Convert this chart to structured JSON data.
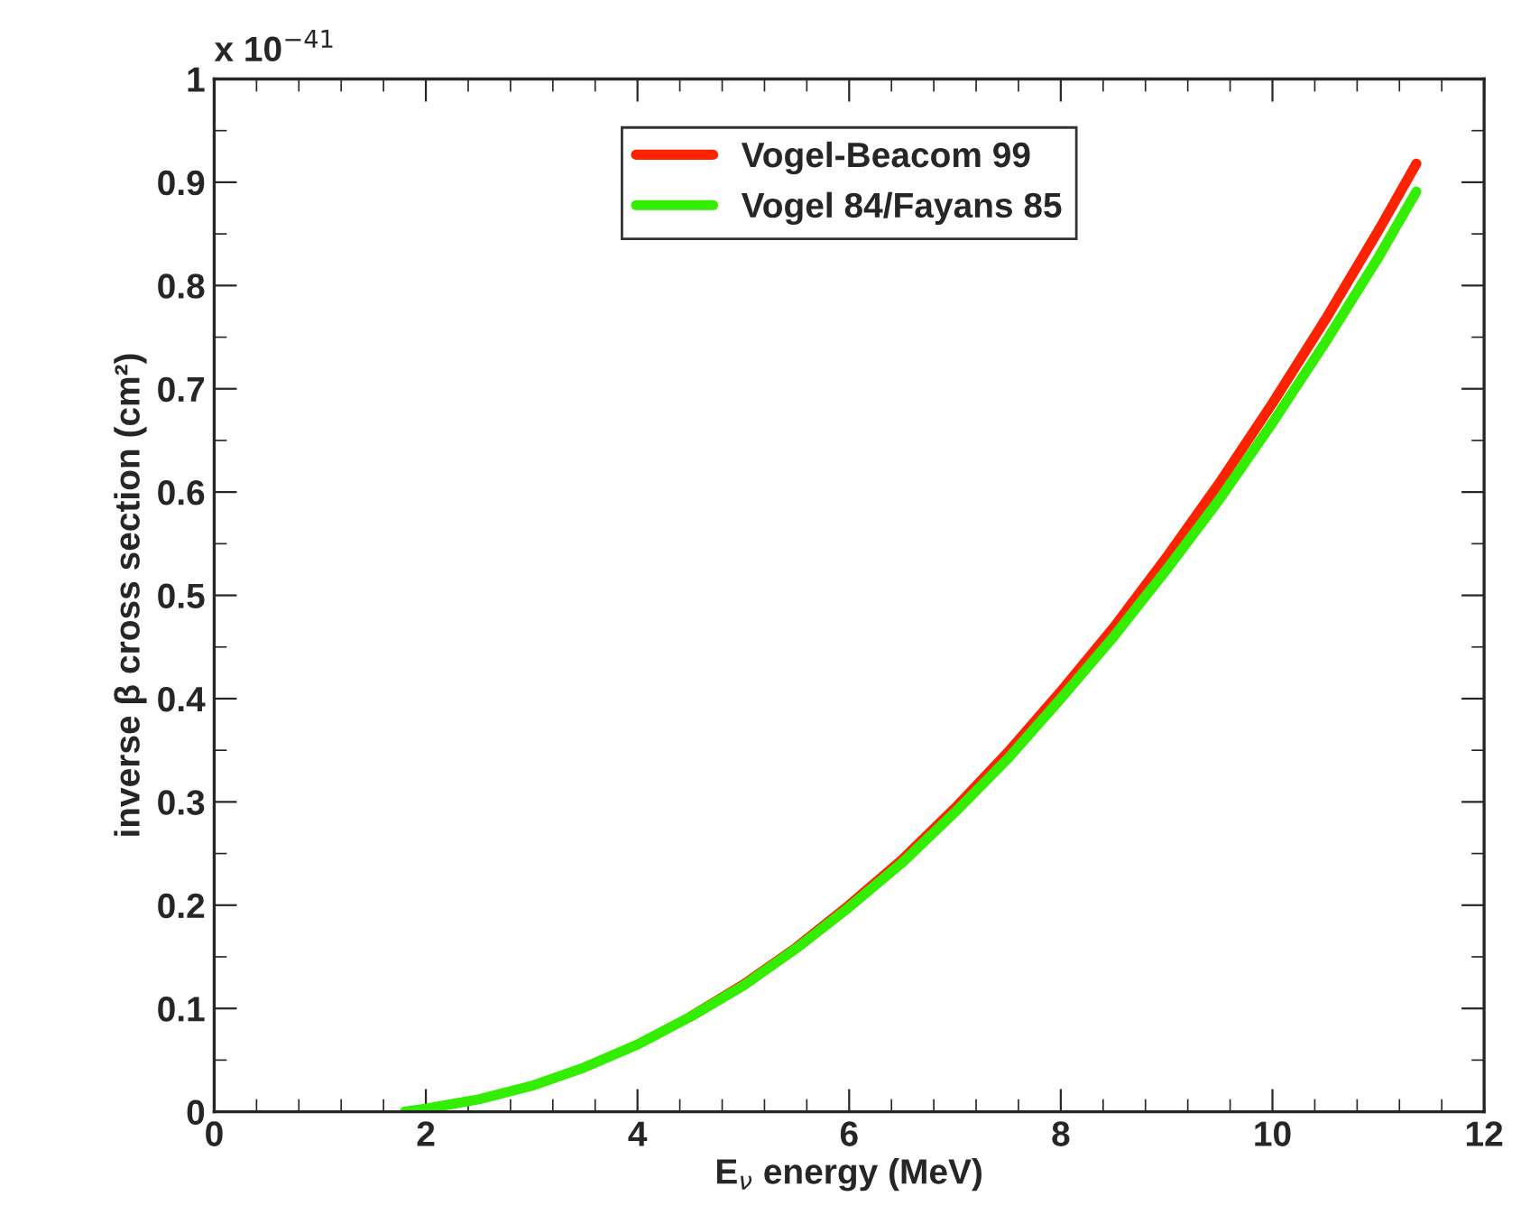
{
  "chart_data": {
    "type": "line",
    "xlabel": "E$_{ν}$ energy (MeV)",
    "ylabel": "inverse β cross section (cm²)",
    "annotations": [
      "x 10$^{−41}$"
    ],
    "x": [
      1.8,
      2,
      2.5,
      3,
      3.5,
      4,
      4.5,
      5,
      5.5,
      6,
      6.5,
      7,
      7.5,
      8,
      8.5,
      9,
      9.5,
      10,
      10.5,
      11,
      11.36
    ],
    "series": [
      {
        "name": "Vogel-Beacom 99",
        "color": "#ff2200",
        "values": [
          null,
          null,
          null,
          null,
          null,
          null,
          0.092,
          0.123,
          0.159,
          0.2,
          0.244,
          0.294,
          0.348,
          0.407,
          0.469,
          0.537,
          0.609,
          0.686,
          0.767,
          0.853,
          0.918
        ]
      },
      {
        "name": "Vogel 84/Fayans 85",
        "color": "#33ee00",
        "values": [
          0,
          0.003,
          0.012,
          0.025,
          0.043,
          0.065,
          0.092,
          0.122,
          0.158,
          0.198,
          0.241,
          0.29,
          0.342,
          0.4,
          0.46,
          0.525,
          0.593,
          0.667,
          0.745,
          0.827,
          0.891
        ]
      }
    ],
    "xlim": [
      0,
      12
    ],
    "xticks": [
      0,
      2,
      4,
      6,
      8,
      10,
      12
    ],
    "ylim": [
      0,
      1
    ],
    "yticks": [
      0,
      0.1,
      0.2,
      0.3,
      0.4,
      0.5,
      0.6,
      0.7,
      0.8,
      0.9,
      1
    ],
    "grid": false,
    "legend": "top",
    "marker": "none",
    "line_style": "solid"
  }
}
